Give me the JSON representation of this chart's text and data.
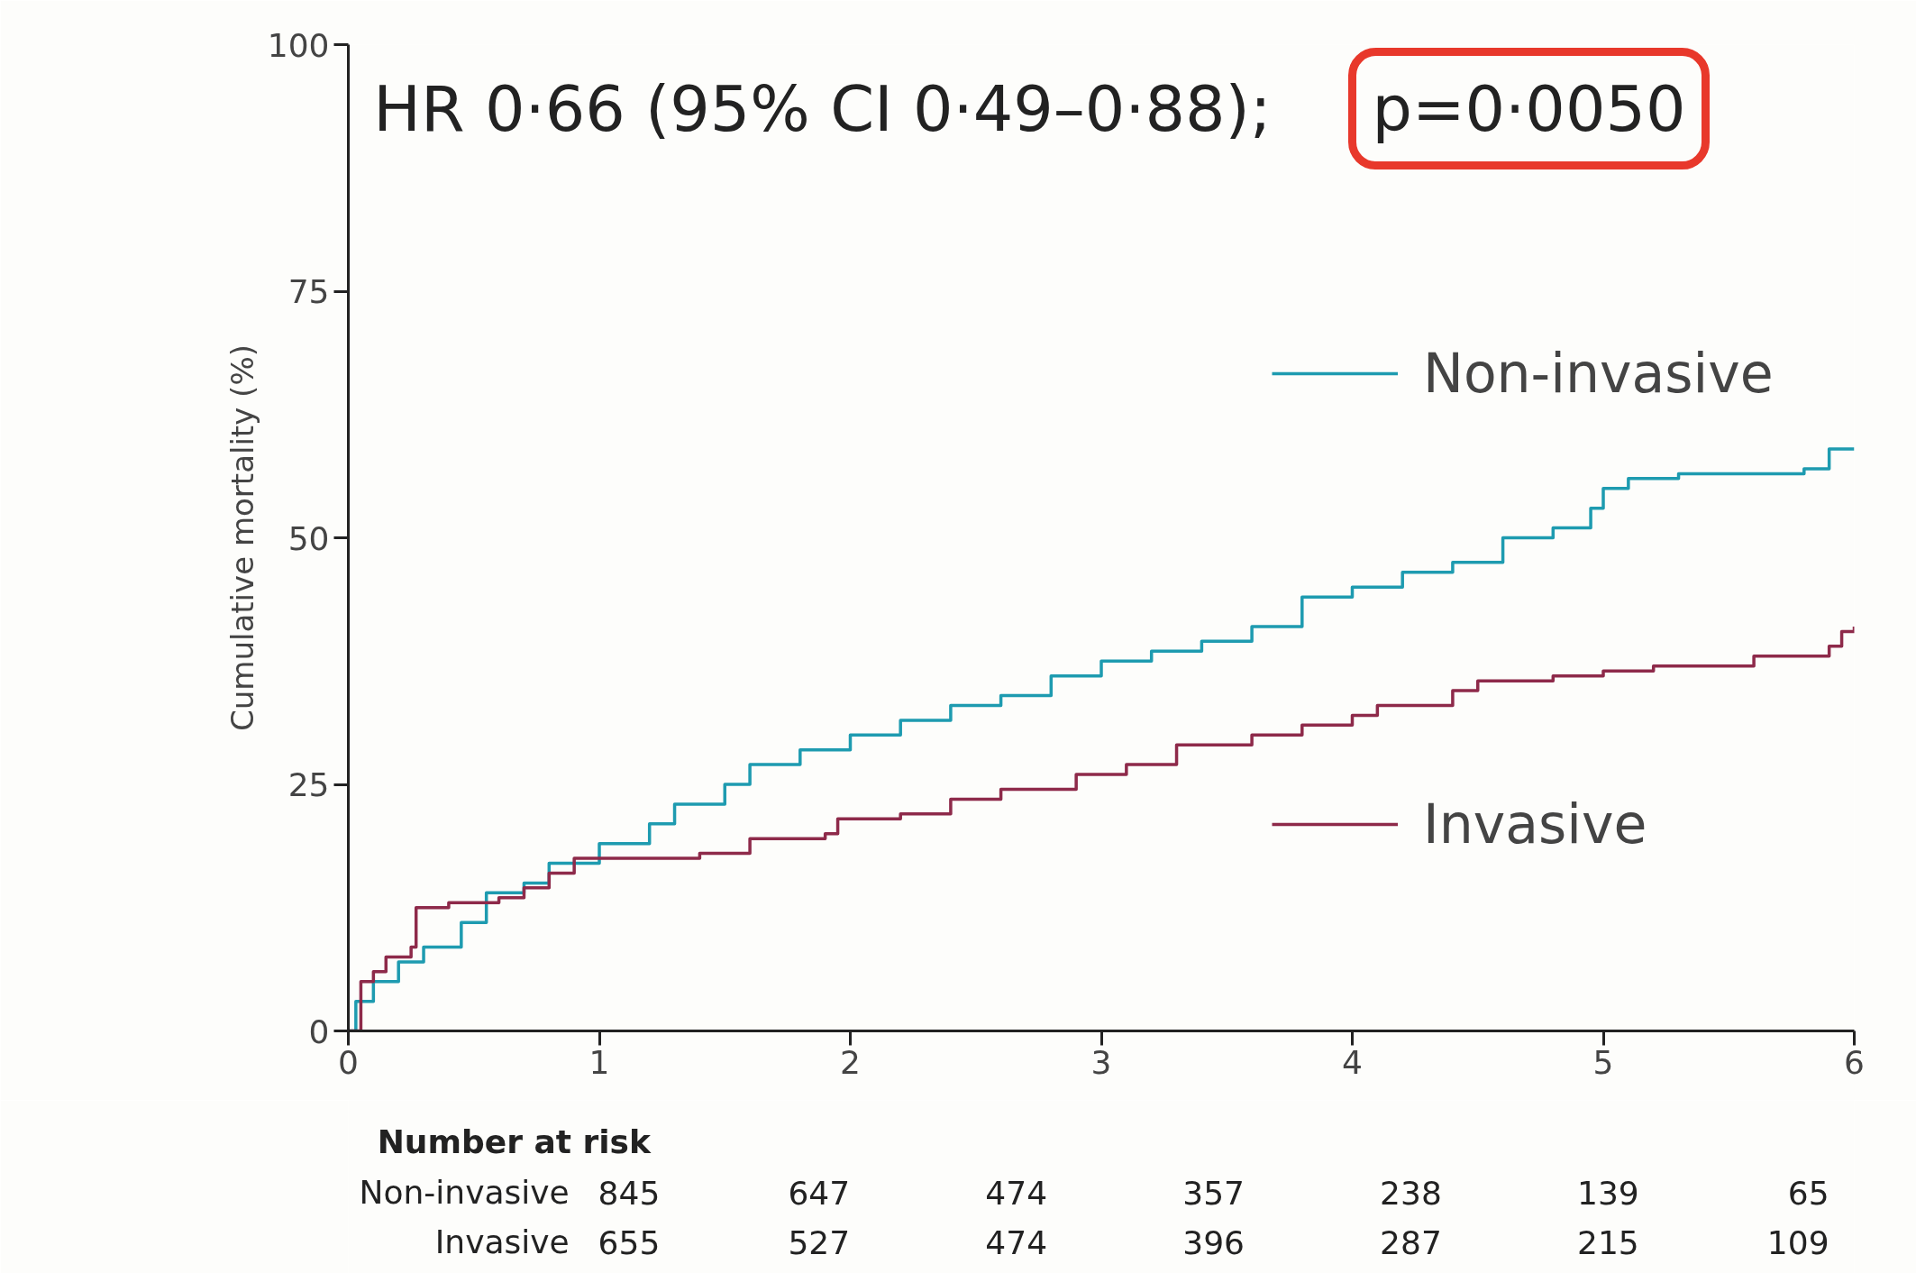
{
  "chart_data": {
    "type": "step",
    "ylabel": "Cumulative mortality (%)",
    "xlim": [
      0,
      6
    ],
    "xticks": [
      0,
      1,
      2,
      3,
      4,
      5,
      6
    ],
    "ylim": [
      0,
      100
    ],
    "yticks": [
      0,
      25,
      50,
      75,
      100
    ],
    "grid": false,
    "legend": "right",
    "series": [
      {
        "name": "Non-invasive",
        "color": "#1e9bb0",
        "x": [
          0,
          0.03,
          0.1,
          0.2,
          0.3,
          0.45,
          0.55,
          0.7,
          0.8,
          1.0,
          1.2,
          1.3,
          1.5,
          1.6,
          1.8,
          2.0,
          2.2,
          2.4,
          2.6,
          2.8,
          3.0,
          3.2,
          3.4,
          3.6,
          3.8,
          4.0,
          4.2,
          4.4,
          4.6,
          4.8,
          4.95,
          5.0,
          5.1,
          5.3,
          5.8,
          5.9,
          6.0
        ],
        "values": [
          0,
          3,
          5,
          7,
          8.5,
          11,
          14,
          15,
          17,
          19,
          21,
          23,
          25,
          27,
          28.5,
          30,
          31.5,
          33,
          34,
          36,
          37.5,
          38.5,
          39.5,
          41,
          44,
          45,
          46.5,
          47.5,
          50,
          51,
          53,
          55,
          56,
          56.5,
          57,
          59,
          59
        ]
      },
      {
        "name": "Invasive",
        "color": "#8e2a4a",
        "x": [
          0,
          0.05,
          0.1,
          0.15,
          0.25,
          0.27,
          0.4,
          0.6,
          0.7,
          0.8,
          0.9,
          1.2,
          1.4,
          1.6,
          1.9,
          1.95,
          2.2,
          2.4,
          2.6,
          2.9,
          3.1,
          3.3,
          3.6,
          3.8,
          4.0,
          4.1,
          4.4,
          4.5,
          4.8,
          5.0,
          5.2,
          5.6,
          5.9,
          5.95,
          6.0
        ],
        "values": [
          0,
          5,
          6,
          7.5,
          8.5,
          12.5,
          13,
          13.5,
          14.5,
          16,
          17.5,
          17.5,
          18,
          19.5,
          20,
          21.5,
          22,
          23.5,
          24.5,
          26,
          27,
          29,
          30,
          31,
          32,
          33,
          34.5,
          35.5,
          36,
          36.5,
          37,
          38,
          39,
          40.5,
          41
        ]
      }
    ],
    "annotations": [
      "HR 0·66 (95% CI 0·49–0·88);",
      "p=0·0050",
      "Number at risk",
      "Non-invasive",
      "845",
      "647",
      "474",
      "357",
      "238",
      "139",
      "65",
      "Invasive",
      "655",
      "527",
      "474",
      "396",
      "287",
      "215",
      "109"
    ]
  }
}
